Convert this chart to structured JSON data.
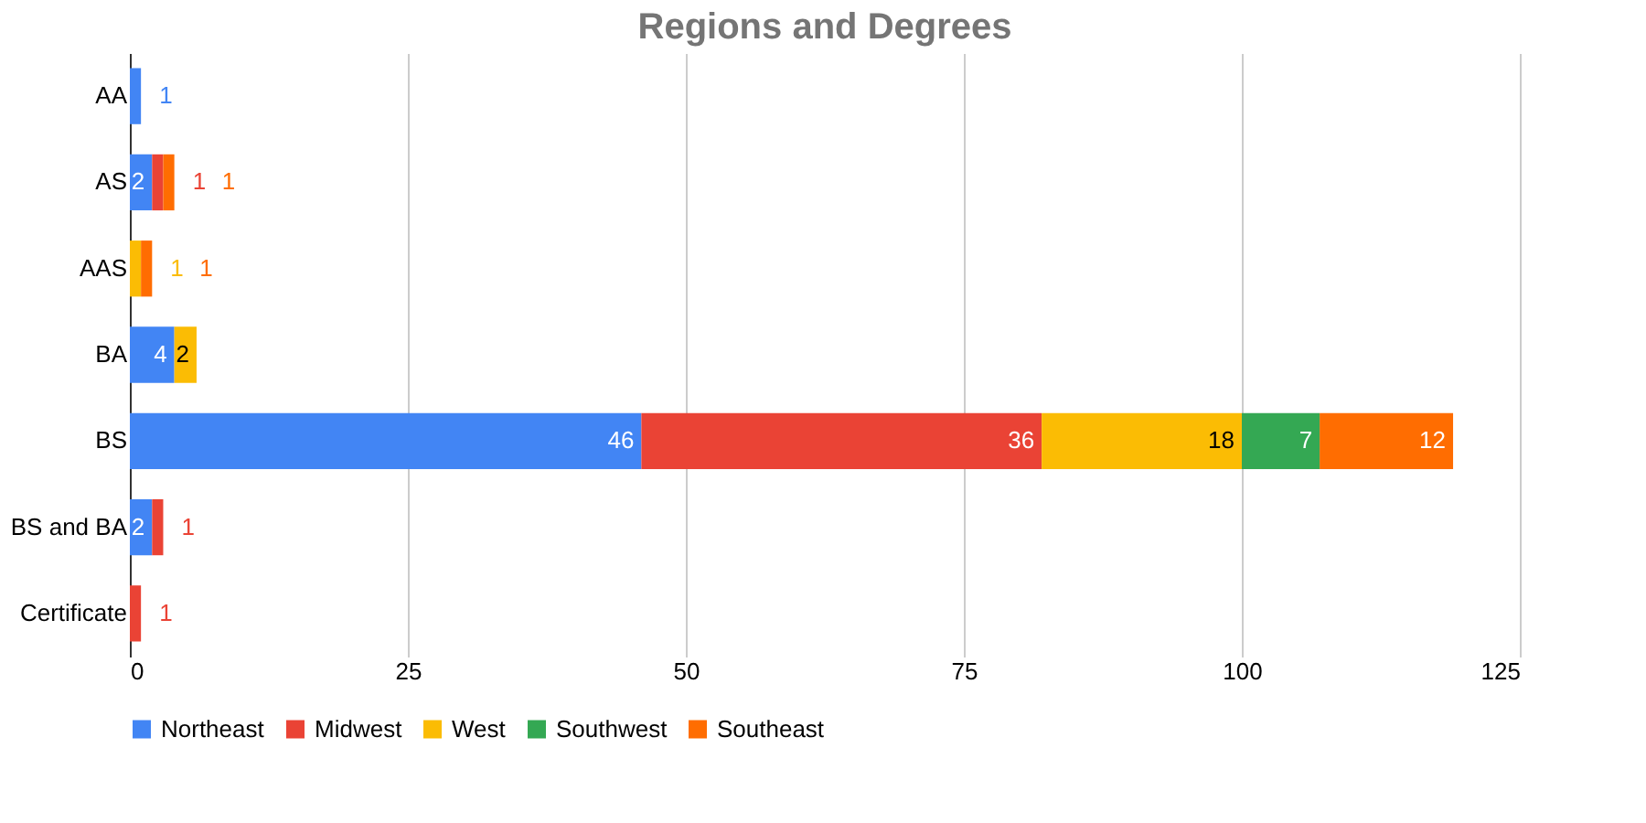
{
  "chart_data": {
    "type": "bar",
    "title": "Regions and Degrees",
    "orientation": "horizontal",
    "stacked": true,
    "categories": [
      "AA",
      "AS",
      "AAS",
      "BA",
      "BS",
      "BS and BA",
      "Certificate"
    ],
    "series": [
      {
        "name": "Northeast",
        "color": "#4285f4",
        "values": [
          1,
          2,
          null,
          4,
          46,
          2,
          null
        ]
      },
      {
        "name": "Midwest",
        "color": "#ea4335",
        "values": [
          null,
          1,
          null,
          null,
          36,
          1,
          1
        ]
      },
      {
        "name": "West",
        "color": "#fbbc04",
        "values": [
          null,
          null,
          1,
          2,
          18,
          null,
          null
        ]
      },
      {
        "name": "Southwest",
        "color": "#34a853",
        "values": [
          null,
          null,
          null,
          null,
          7,
          null,
          null
        ]
      },
      {
        "name": "Southeast",
        "color": "#ff6d01",
        "values": [
          null,
          1,
          1,
          null,
          12,
          null,
          null
        ]
      }
    ],
    "xlim": [
      0,
      125
    ],
    "xticks": [
      0,
      25,
      50,
      75,
      100,
      125
    ],
    "grid": "x",
    "legend": "bottom",
    "data_labels": true
  }
}
